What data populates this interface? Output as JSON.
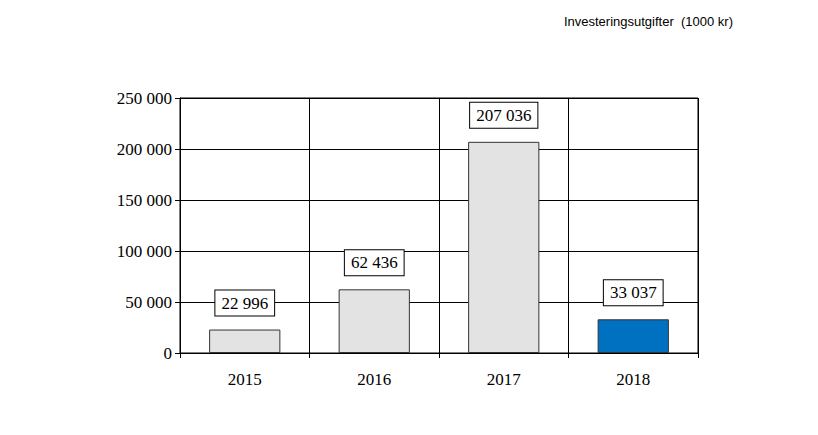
{
  "chart_data": {
    "type": "bar",
    "title": "Investeringsutgifter  (1000 kr)",
    "categories": [
      "2015",
      "2016",
      "2017",
      "2018"
    ],
    "values": [
      22996,
      62436,
      207036,
      33037
    ],
    "value_labels": [
      "22 996",
      "62 436",
      "207 036",
      "33 037"
    ],
    "colors": [
      "#e3e3e3",
      "#e3e3e3",
      "#e3e3e3",
      "#0070c0"
    ],
    "ylim": [
      0,
      250000
    ],
    "yticks": [
      0,
      {
        "value": 50000,
        "label": "50 000"
      },
      {
        "value": 100000,
        "label": "100 000"
      },
      {
        "value": 150000,
        "label": "150 000"
      },
      {
        "value": 200000,
        "label": "200 000"
      },
      {
        "value": 250000,
        "label": "250 000"
      }
    ],
    "grid": true,
    "data_labels": true
  }
}
